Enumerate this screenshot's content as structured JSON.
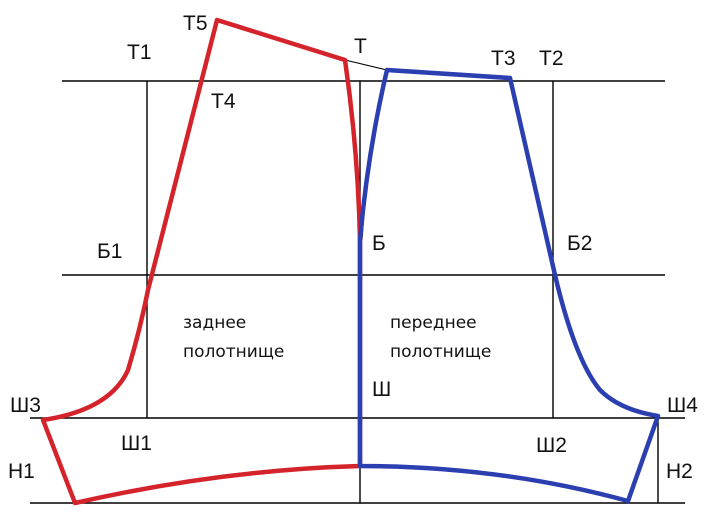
{
  "labels": {
    "t1": "Т1",
    "t5": "Т5",
    "t": "Т",
    "t3": "Т3",
    "t2": "Т2",
    "t4": "Т4",
    "b1": "Б1",
    "b": "Б",
    "b2": "Б2",
    "sh3": "Ш3",
    "sh": "Ш",
    "sh4": "Ш4",
    "sh1": "Ш1",
    "sh2": "Ш2",
    "n1": "Н1",
    "n2": "Н2"
  },
  "panels": {
    "back_line1": "заднее",
    "back_line2": "полотнище",
    "front_line1": "переднее",
    "front_line2": "полотнище"
  },
  "colors": {
    "back_panel": "#d4232a",
    "front_panel": "#2b3fb0",
    "guides": "#000000"
  }
}
